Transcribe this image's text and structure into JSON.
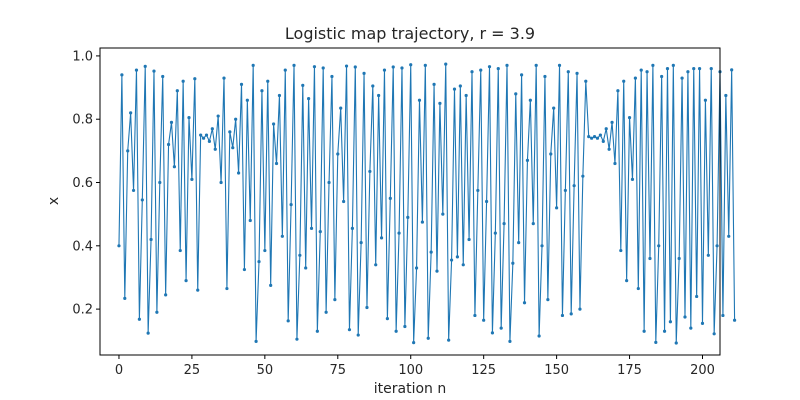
{
  "chart_data": {
    "type": "line",
    "title": "Logistic map trajectory, r = 3.9",
    "xlabel": "iteration n",
    "ylabel": "x",
    "xlim": [
      -6.5,
      206
    ],
    "ylim": [
      0.055,
      1.025
    ],
    "xticks": [
      0,
      25,
      50,
      75,
      100,
      125,
      150,
      175,
      200
    ],
    "yticks": [
      0.2,
      0.4,
      0.6,
      0.8,
      1.0
    ],
    "ytick_labels": [
      "0.2",
      "0.4",
      "0.6",
      "0.8",
      "1.0"
    ],
    "grid": false,
    "series": [
      {
        "color": "#1f77b4",
        "markers": true,
        "x_start": 0,
        "x_step": 1,
        "values": [
          0.4,
          0.94,
          0.234,
          0.7,
          0.82,
          0.575,
          0.955,
          0.168,
          0.545,
          0.967,
          0.124,
          0.42,
          0.952,
          0.19,
          0.6,
          0.935,
          0.245,
          0.72,
          0.79,
          0.65,
          0.89,
          0.385,
          0.92,
          0.29,
          0.805,
          0.61,
          0.928,
          0.26,
          0.75,
          0.74,
          0.75,
          0.73,
          0.77,
          0.705,
          0.81,
          0.6,
          0.93,
          0.265,
          0.76,
          0.71,
          0.8,
          0.63,
          0.91,
          0.325,
          0.86,
          0.48,
          0.97,
          0.098,
          0.35,
          0.89,
          0.385,
          0.92,
          0.275,
          0.785,
          0.66,
          0.875,
          0.43,
          0.955,
          0.163,
          0.53,
          0.97,
          0.105,
          0.37,
          0.907,
          0.33,
          0.865,
          0.455,
          0.966,
          0.13,
          0.445,
          0.962,
          0.19,
          0.6,
          0.935,
          0.23,
          0.69,
          0.835,
          0.54,
          0.968,
          0.135,
          0.455,
          0.965,
          0.118,
          0.41,
          0.945,
          0.205,
          0.635,
          0.905,
          0.34,
          0.875,
          0.425,
          0.955,
          0.17,
          0.55,
          0.965,
          0.13,
          0.44,
          0.962,
          0.145,
          0.49,
          0.972,
          0.094,
          0.33,
          0.86,
          0.475,
          0.97,
          0.108,
          0.38,
          0.91,
          0.32,
          0.85,
          0.5,
          0.974,
          0.102,
          0.355,
          0.895,
          0.365,
          0.905,
          0.34,
          0.875,
          0.42,
          0.95,
          0.18,
          0.575,
          0.955,
          0.165,
          0.54,
          0.966,
          0.125,
          0.44,
          0.96,
          0.14,
          0.47,
          0.97,
          0.098,
          0.345,
          0.88,
          0.41,
          0.94,
          0.22,
          0.67,
          0.86,
          0.47,
          0.97,
          0.115,
          0.4,
          0.935,
          0.23,
          0.69,
          0.835,
          0.52,
          0.97,
          0.18,
          0.575,
          0.95,
          0.185,
          0.59,
          0.945,
          0.2,
          0.62,
          0.92,
          0.745,
          0.74,
          0.745,
          0.74,
          0.75,
          0.73,
          0.77,
          0.705,
          0.79,
          0.66,
          0.89,
          0.385,
          0.92,
          0.29,
          0.805,
          0.61,
          0.93,
          0.265,
          0.955,
          0.13,
          0.95,
          0.36,
          0.97,
          0.095,
          0.4,
          0.935,
          0.13,
          0.96,
          0.16,
          0.97,
          0.093,
          0.36,
          0.93,
          0.175,
          0.95,
          0.14,
          0.96,
          0.24,
          0.96,
          0.155,
          0.86,
          0.37,
          0.96,
          0.122,
          0.4,
          0.95,
          0.18,
          0.875,
          0.43,
          0.956,
          0.165
        ]
      }
    ]
  }
}
